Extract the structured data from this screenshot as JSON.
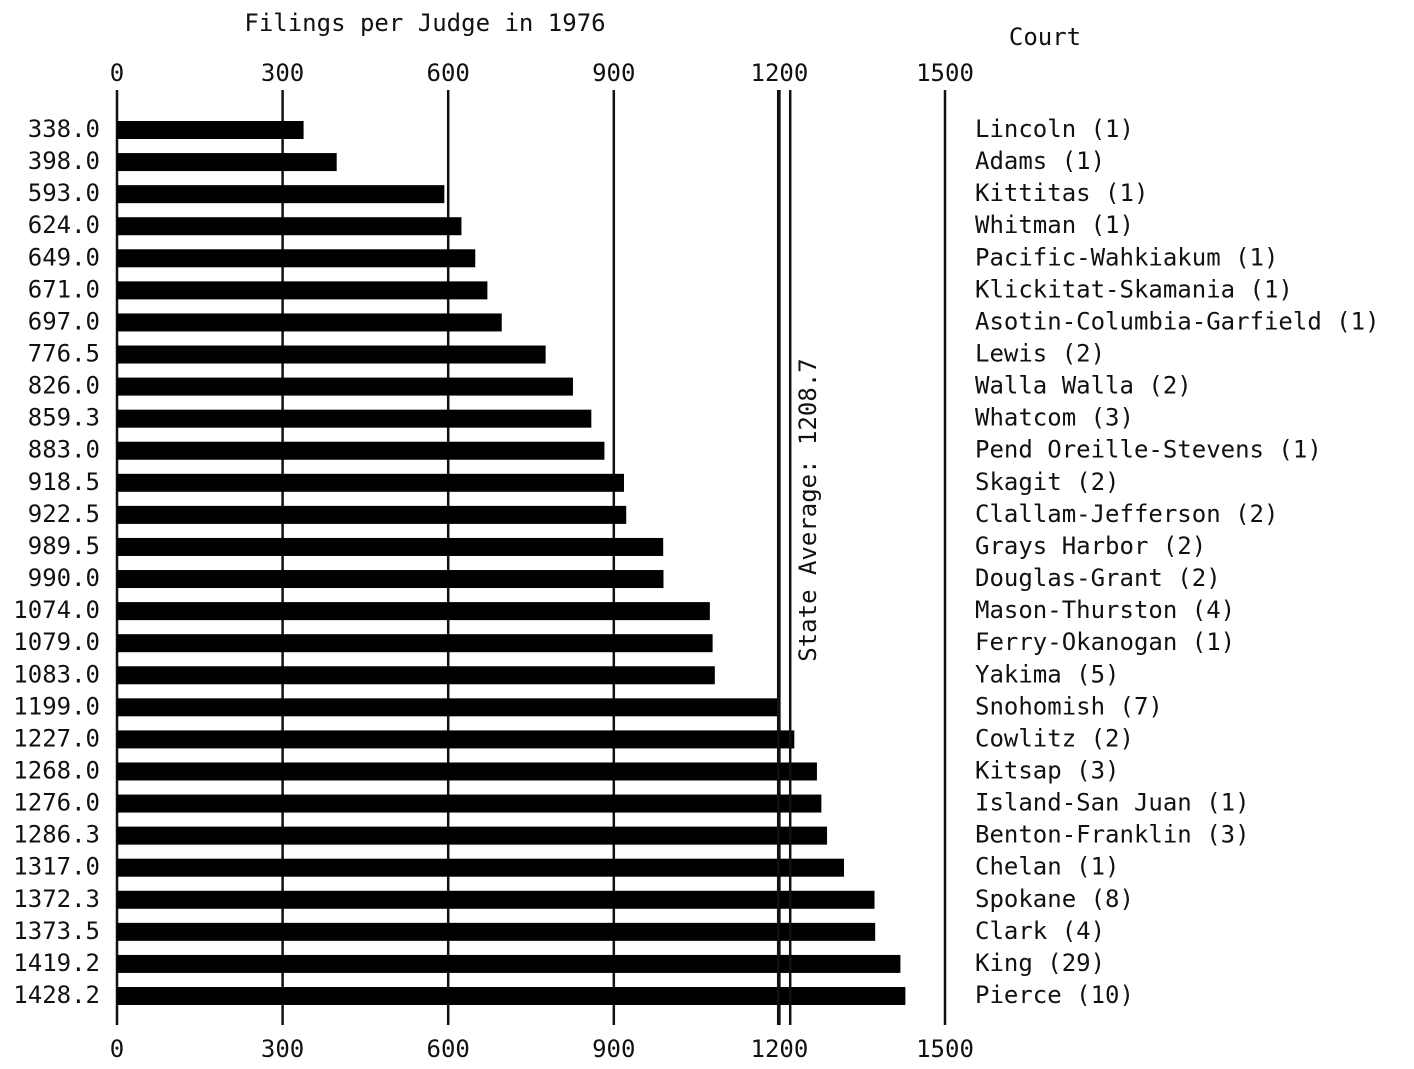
{
  "chart_data": {
    "type": "bar",
    "orientation": "horizontal",
    "title": "Filings per Judge in 1976",
    "category_header": "Court",
    "categories": [
      "Lincoln (1)",
      "Adams (1)",
      "Kittitas (1)",
      "Whitman (1)",
      "Pacific-Wahkiakum (1)",
      "Klickitat-Skamania (1)",
      "Asotin-Columbia-Garfield (1)",
      "Lewis (2)",
      "Walla Walla (2)",
      "Whatcom (3)",
      "Pend Oreille-Stevens (1)",
      "Skagit (2)",
      "Clallam-Jefferson (2)",
      "Grays Harbor (2)",
      "Douglas-Grant (2)",
      "Mason-Thurston (4)",
      "Ferry-Okanogan (1)",
      "Yakima (5)",
      "Snohomish (7)",
      "Cowlitz (2)",
      "Kitsap (3)",
      "Island-San Juan (1)",
      "Benton-Franklin (3)",
      "Chelan (1)",
      "Spokane (8)",
      "Clark (4)",
      "King (29)",
      "Pierce (10)"
    ],
    "values": [
      338.0,
      398.0,
      593.0,
      624.0,
      649.0,
      671.0,
      697.0,
      776.5,
      826.0,
      859.3,
      883.0,
      918.5,
      922.5,
      989.5,
      990.0,
      1074.0,
      1079.0,
      1083.0,
      1199.0,
      1227.0,
      1268.0,
      1276.0,
      1286.3,
      1317.0,
      1372.3,
      1373.5,
      1419.2,
      1428.2
    ],
    "value_labels": [
      "338.0",
      "398.0",
      "593.0",
      "624.0",
      "649.0",
      "671.0",
      "697.0",
      "776.5",
      "826.0",
      "859.3",
      "883.0",
      "918.5",
      "922.5",
      "989.5",
      "990.0",
      "1074.0",
      "1079.0",
      "1083.0",
      "1199.0",
      "1227.0",
      "1268.0",
      "1276.0",
      "1286.3",
      "1317.0",
      "1372.3",
      "1373.5",
      "1419.2",
      "1428.2"
    ],
    "color": "#000000",
    "xlim": [
      0,
      1500
    ],
    "xticks": [
      0,
      300,
      600,
      900,
      1200,
      1500
    ],
    "grid": true,
    "reference_line": {
      "value": 1208.7,
      "label": "State Average: 1208.7"
    }
  }
}
